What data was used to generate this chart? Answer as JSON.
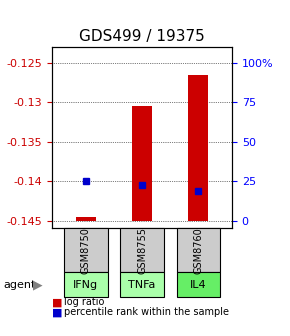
{
  "title": "GDS499 / 19375",
  "ylim": [
    -0.146,
    -0.123
  ],
  "yticks_left": [
    -0.125,
    -0.13,
    -0.135,
    -0.14,
    -0.145
  ],
  "yticks_right_vals": [
    -0.125,
    -0.13,
    -0.135,
    -0.14,
    -0.145
  ],
  "yticks_right_labels": [
    "100%",
    "75",
    "50",
    "25",
    "0"
  ],
  "right_axis_map": {
    "−0.125": "100%",
    "−0.13": "75",
    "−0.135": "50",
    "−0.14": "25",
    "−0.145": "0"
  },
  "samples": [
    "GSM8750",
    "GSM8755",
    "GSM8760"
  ],
  "agents": [
    "IFNg",
    "TNFa",
    "IL4"
  ],
  "x_positions": [
    1,
    2,
    3
  ],
  "log_ratio_values": [
    -0.1445,
    -0.1305,
    -0.1265
  ],
  "log_ratio_base": -0.145,
  "percentile_rank_values": [
    -0.14,
    -0.1405,
    -0.1412
  ],
  "bar_color": "#cc0000",
  "percentile_color": "#0000cc",
  "bar_width": 0.35,
  "grid_color": "#000000",
  "grid_style": "dotted",
  "sample_box_color": "#cccccc",
  "agent_box_colors": [
    "#aaffaa",
    "#aaffaa",
    "#66ee66"
  ],
  "legend_bar_color": "#cc0000",
  "legend_dot_color": "#0000cc",
  "left_tick_color": "#cc0000",
  "right_tick_color": "#0000ff",
  "title_fontsize": 11,
  "tick_fontsize": 8,
  "agent_fontsize": 8,
  "sample_fontsize": 7
}
